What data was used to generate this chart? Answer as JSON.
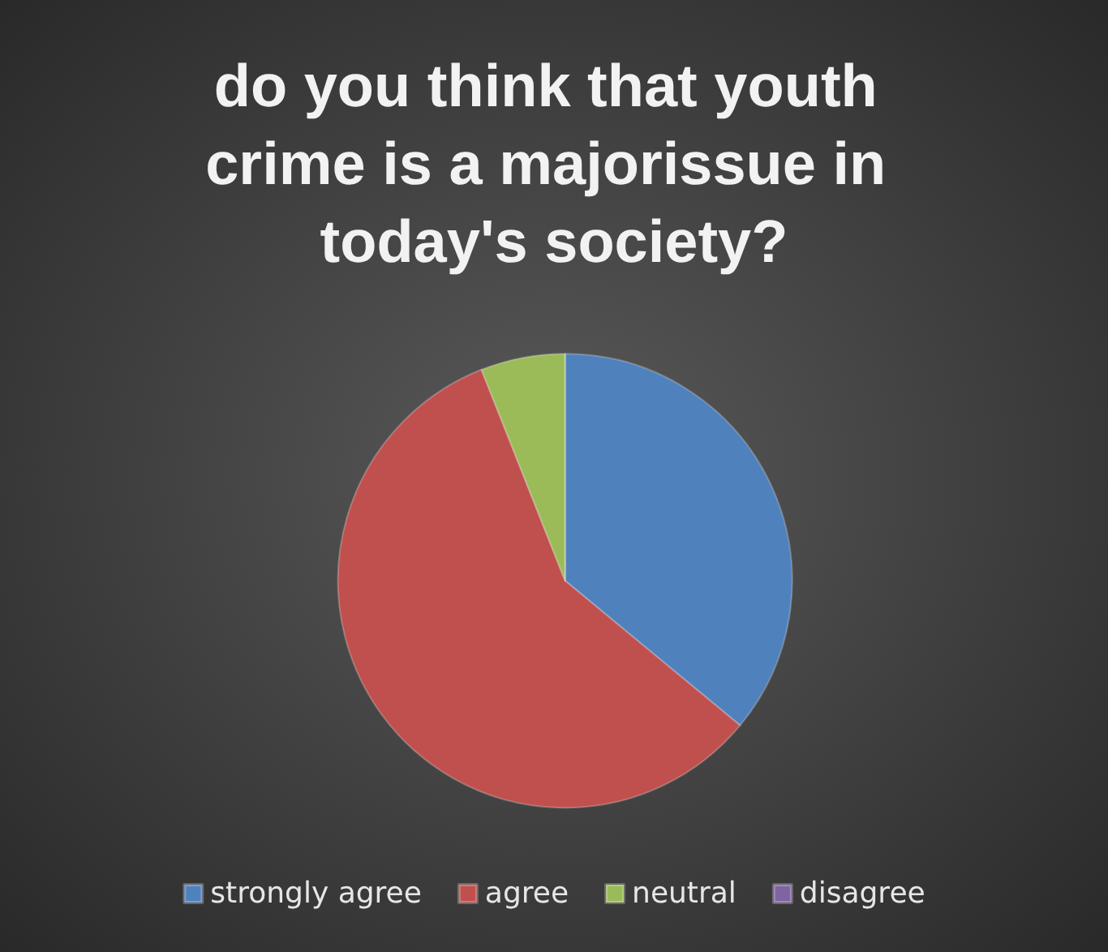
{
  "chart_data": {
    "type": "pie",
    "title": "do you think that youth crime is a majorissue in today's society?",
    "categories": [
      "strongly agree",
      "agree",
      "neutral",
      "disagree"
    ],
    "values": [
      36,
      58,
      6,
      0
    ],
    "colors": [
      "#4f81bd",
      "#c0504d",
      "#9bbb59",
      "#8064a2"
    ],
    "legend": "bottom"
  }
}
